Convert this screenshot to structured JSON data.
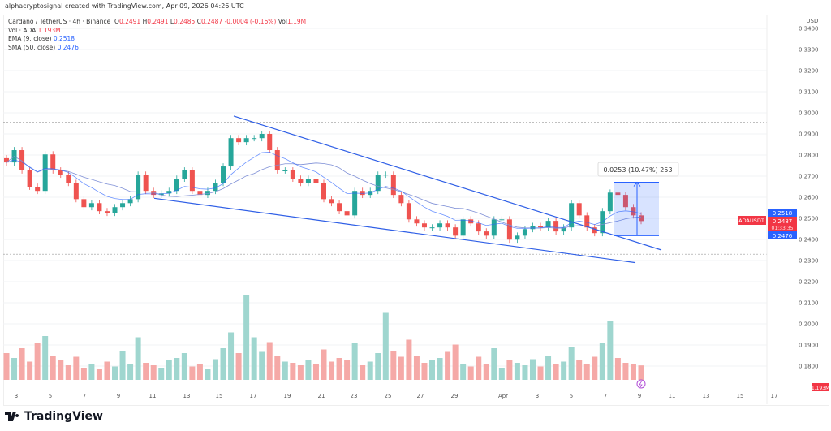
{
  "attribution": "alphacryptosignal created with TradingView.com, Apr 09, 2026 04:26 UTC",
  "legend": {
    "symbol": "Cardano / TetherUS · 4h · Binance",
    "o_label": "O",
    "o": "0.2491",
    "h_label": "H",
    "h": "0.2491",
    "l_label": "L",
    "l": "0.2485",
    "c_label": "C",
    "c": "0.2487",
    "change": "-0.0004 (-0.16%)",
    "vol_label": "Vol",
    "vol": "1.19M",
    "vol_ada_label": "Vol · ADA",
    "vol_ada": "1.193M",
    "ema_label": "EMA (9, close)",
    "ema": "0.2518",
    "sma_label": "SMA (50, close)",
    "sma": "0.2476"
  },
  "price_axis": {
    "currency": "USDT",
    "ticks": [
      "0.3400",
      "0.3300",
      "0.3200",
      "0.3100",
      "0.3000",
      "0.2900",
      "0.2800",
      "0.2700",
      "0.2600",
      "0.2500",
      "0.2400",
      "0.2300",
      "0.2200",
      "0.2100",
      "0.2000",
      "0.1900",
      "0.1800"
    ]
  },
  "badges": {
    "ema": "0.2518",
    "symbol": "ADAUSDT",
    "price": "0.2487",
    "countdown": "01:33:35",
    "sma": "0.2476",
    "volume": "1.193M"
  },
  "time_axis": [
    "3",
    "5",
    "7",
    "9",
    "11",
    "13",
    "15",
    "17",
    "19",
    "21",
    "23",
    "25",
    "27",
    "29",
    "Apr",
    "3",
    "5",
    "7",
    "9",
    "11",
    "13",
    "15",
    "17"
  ],
  "measure": {
    "label": "0.0253 (10.47%) 253"
  },
  "colors": {
    "up": "#26a69a",
    "down": "#ef5350",
    "ema": "#2962ff",
    "sma": "#7e8fd6",
    "trendline": "#2f5fe6",
    "measure": "#2962ff"
  },
  "footer": {
    "brand": "TradingView"
  },
  "chart_data": {
    "type": "candlestick",
    "timeframe": "4h",
    "closes": [
      0.2765,
      0.2823,
      0.2727,
      0.265,
      0.263,
      0.2803,
      0.2727,
      0.2707,
      0.2668,
      0.2591,
      0.2553,
      0.2572,
      0.2534,
      0.2526,
      0.2553,
      0.2572,
      0.2591,
      0.2707,
      0.263,
      0.2611,
      0.2618,
      0.263,
      0.2688,
      0.2727,
      0.263,
      0.2611,
      0.263,
      0.2668,
      0.2746,
      0.288,
      0.2861,
      0.288,
      0.288,
      0.29,
      0.2823,
      0.2727,
      0.2727,
      0.2688,
      0.2668,
      0.2688,
      0.2668,
      0.2591,
      0.2572,
      0.2534,
      0.2514,
      0.263,
      0.2611,
      0.263,
      0.2707,
      0.2707,
      0.2611,
      0.2572,
      0.2495,
      0.2476,
      0.2457,
      0.2457,
      0.2476,
      0.2457,
      0.2418,
      0.2495,
      0.2476,
      0.2438,
      0.2418,
      0.2495,
      0.2495,
      0.2399,
      0.2418,
      0.2449,
      0.2464,
      0.2457,
      0.2488,
      0.2438,
      0.2457,
      0.2572,
      0.2514,
      0.2457,
      0.243,
      0.2534,
      0.2622,
      0.2611,
      0.2553,
      0.2514,
      0.2487
    ],
    "volumes_m": [
      2.2,
      1.8,
      2.6,
      1.5,
      3.0,
      3.6,
      2.0,
      1.6,
      1.2,
      1.9,
      1.0,
      1.3,
      0.9,
      1.5,
      1.1,
      2.4,
      1.3,
      3.5,
      1.4,
      1.2,
      1.0,
      1.6,
      1.8,
      2.2,
      1.1,
      1.3,
      0.9,
      1.7,
      2.6,
      3.9,
      2.2,
      7.0,
      3.5,
      2.3,
      3.1,
      2.0,
      1.5,
      1.4,
      1.2,
      1.6,
      1.3,
      2.5,
      1.5,
      1.8,
      1.6,
      3.0,
      1.2,
      1.5,
      2.2,
      5.5,
      2.4,
      1.9,
      3.3,
      2.0,
      1.4,
      1.6,
      1.8,
      2.3,
      2.9,
      1.3,
      1.1,
      1.9,
      1.3,
      2.6,
      1.0,
      1.6,
      1.4,
      1.2,
      1.7,
      1.1,
      2.0,
      1.3,
      1.5,
      2.7,
      1.6,
      1.3,
      1.9,
      3.0,
      4.8,
      1.8,
      1.4,
      1.3,
      1.19
    ],
    "ylim": [
      0.175,
      0.345
    ],
    "horizontal_levels": [
      0.2955,
      0.233
    ],
    "wedge_upper": [
      0.2985,
      0.235
    ],
    "wedge_lower": [
      0.2595,
      0.229
    ],
    "measure_range": [
      0.2418,
      0.2671
    ]
  }
}
